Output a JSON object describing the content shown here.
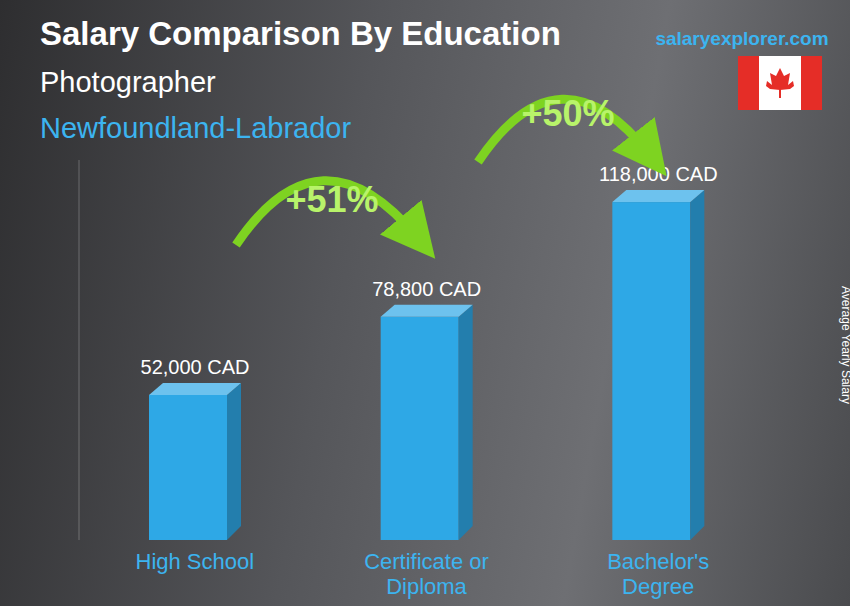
{
  "chart_data": {
    "type": "bar",
    "title": "Salary Comparison By Education",
    "subtitle": [
      "Photographer",
      "Newfoundland-Labrador"
    ],
    "source": "salaryexplorer.com",
    "y_label": "Average Yearly Salary",
    "categories": [
      "High School",
      "Certificate or Diploma",
      "Bachelor's Degree"
    ],
    "values": [
      52000,
      78800,
      118000
    ],
    "value_labels": [
      "52,000 CAD",
      "78,800 CAD",
      "118,000 CAD"
    ],
    "annotations": [
      "+51%",
      "+50%"
    ],
    "color": "#2ea8e6",
    "ylim": [
      0,
      130000
    ],
    "grid": false,
    "data_labels": true,
    "tick_labels": "x"
  }
}
